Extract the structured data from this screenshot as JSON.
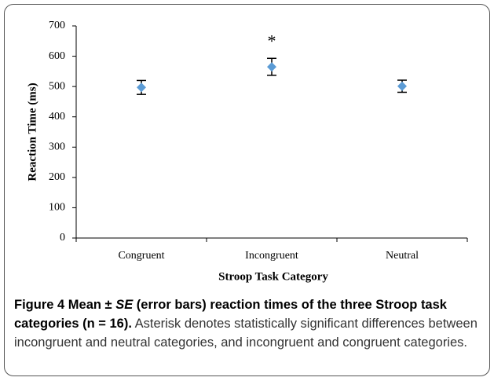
{
  "chart_data": {
    "type": "scatter",
    "categories": [
      "Congruent",
      "Incongruent",
      "Neutral"
    ],
    "values": [
      497,
      565,
      501
    ],
    "errors": [
      23,
      28,
      20
    ],
    "color": "#5b9bd5",
    "ylim": [
      0,
      700
    ],
    "yticks": [
      0,
      100,
      200,
      300,
      400,
      500,
      600,
      700
    ],
    "xlabel": "Stroop Task Category",
    "ylabel": "Reaction Time (ms)",
    "annotation": "*"
  },
  "caption": {
    "label": "Figure 4",
    "title_a": "Mean ± ",
    "title_b": "SE",
    "title_c": " (error bars) reaction times of the three Stroop task categories (n = 16).",
    "text": "Asterisk denotes statistically significant differences between incongruent and neutral categories, and incongruent and congruent categories."
  }
}
